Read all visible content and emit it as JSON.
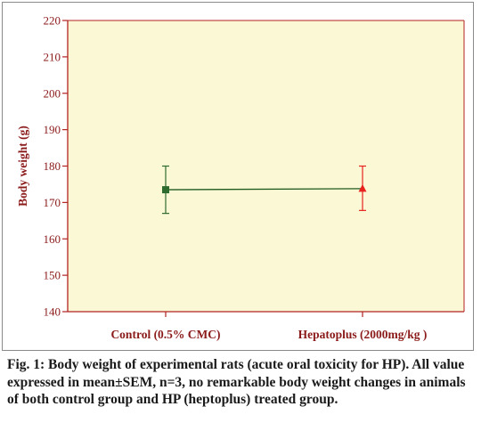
{
  "chart_data": {
    "type": "scatter",
    "categories": [
      "Control (0.5% CMC)",
      "Hepatoplus (2000mg/kg )"
    ],
    "values": [
      173.5,
      173.8
    ],
    "error_low": [
      167,
      167.8
    ],
    "error_high": [
      180,
      180
    ],
    "ylabel": "Body weight (g)",
    "ylim": [
      140,
      220
    ],
    "yticks": [
      "140",
      "150",
      "160",
      "170",
      "180",
      "190",
      "200",
      "210",
      "220"
    ],
    "markers": [
      "square",
      "triangle"
    ],
    "grid": false,
    "colors": {
      "plot_background": "#FBF8D6",
      "axis": "#B22222",
      "label": "#8B1A1A",
      "control": "#2E6B2E",
      "hepatoplus": "#E8231E",
      "line": "#1F5A1F"
    }
  },
  "caption": {
    "text": "Fig. 1: Body weight of experimental rats (acute oral toxicity for HP). All value expressed in mean±SEM, n=3, no remarkable body weight changes in animals of both control group and HP (heptoplus) treated group."
  }
}
